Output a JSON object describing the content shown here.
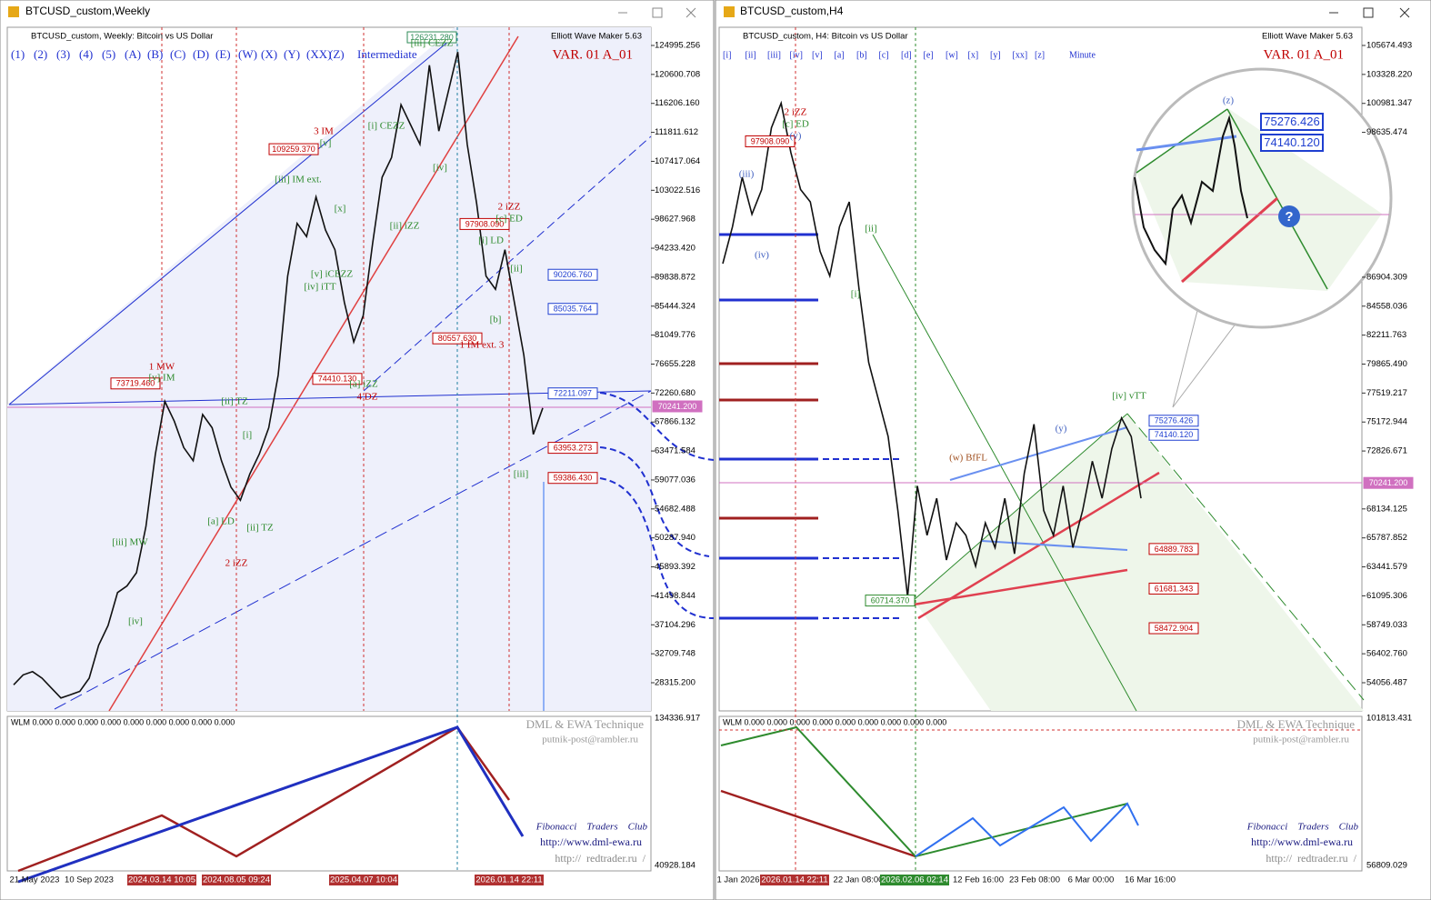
{
  "left": {
    "window_title": "BTCUSD_custom,Weekly",
    "header": "BTCUSD_custom, Weekly:  Bitcoin vs US Dollar",
    "ewm": "Elliott Wave Maker 5.63",
    "var": "VAR. 01 A_01",
    "buttons": [
      "(1)",
      "(2)",
      "(3)",
      "(4)",
      "(5)",
      "(A)",
      "(B)",
      "(C)",
      "(D)",
      "(E)",
      "(W)",
      "(X)",
      "(Y)",
      "(XX)",
      "(Z)"
    ],
    "degree": "Intermediate",
    "ylim": [
      24040,
      127753
    ],
    "yticks": [
      124995.256,
      120600.708,
      {
        "value": 116206.16,
        "label": "116206.160"
      },
      111811.612,
      107417.064,
      103022.516,
      98627.968,
      {
        "value": 94233.42,
        "label": "94233.420"
      },
      89838.872,
      85444.324,
      81049.776,
      76655.228,
      {
        "value": 72260.68,
        "label": "72260.680"
      },
      67866.132,
      63471.584,
      59077.036,
      54682.488,
      {
        "value": 50287.94,
        "label": "50287.940"
      },
      45893.392,
      41498.844,
      37104.296,
      32709.748,
      {
        "value": 28315.2,
        "label": "28315.200"
      }
    ],
    "price_labels": [
      {
        "value": 126231.28,
        "label": "126231.280",
        "color": "#2e8b57"
      },
      {
        "value": 109259.37,
        "label": "109259.370",
        "color": "#c00000"
      },
      {
        "value": 97908.09,
        "label": "97908.090",
        "color": "#c00000"
      },
      {
        "value": 90206.76,
        "label": "90206.760",
        "color": "#1f3fd0"
      },
      {
        "value": 85035.764,
        "label": "85035.764",
        "color": "#1f3fd0"
      },
      {
        "value": 80557.63,
        "label": "80557.630",
        "color": "#c00000"
      },
      {
        "value": 74410.13,
        "label": "74410.130",
        "color": "#c00000"
      },
      {
        "value": 73719.46,
        "label": "73719.460",
        "color": "#c00000"
      },
      {
        "value": 72211.097,
        "label": "72211.097",
        "color": "#1f3fd0"
      },
      {
        "value": 70241.2,
        "label": "70241.200",
        "color": "#d070c0"
      },
      {
        "value": 63953.273,
        "label": "63953.273",
        "color": "#c00000"
      },
      {
        "value": 59386.43,
        "label": "59386.430",
        "color": "#c00000"
      }
    ],
    "waves": [
      {
        "text": "1 MW",
        "color": "#c00000"
      },
      {
        "text": "[v] IM",
        "color": "#2e8b2e"
      },
      {
        "text": "3 IM",
        "color": "#c00000"
      },
      {
        "text": "[v]",
        "color": "#2e8b2e"
      },
      {
        "text": "[iii] IM ext.",
        "color": "#2e8b2e"
      },
      {
        "text": "[x]",
        "color": "#2e8b2e"
      },
      {
        "text": "[i] CEZZ",
        "color": "#2e8b2e"
      },
      {
        "text": "[iii] CEZZ",
        "color": "#2e8b2e"
      },
      {
        "text": "[iv]",
        "color": "#2e8b2e"
      },
      {
        "text": "[ii] iZZ",
        "color": "#2e8b2e"
      },
      {
        "text": "[v] iCEZZ",
        "color": "#2e8b2e"
      },
      {
        "text": "[iv] iTT",
        "color": "#2e8b2e"
      },
      {
        "text": "2 iZZ",
        "color": "#c00000"
      },
      {
        "text": "[c] ED",
        "color": "#2e8b2e"
      },
      {
        "text": "[i] LD",
        "color": "#2e8b2e"
      },
      {
        "text": "[ii]",
        "color": "#2e8b2e"
      },
      {
        "text": "[b]",
        "color": "#2e8b2e"
      },
      {
        "text": "1 IM ext. 3",
        "color": "#c00000"
      },
      {
        "text": "[a] iZZ",
        "color": "#2e8b2e"
      },
      {
        "text": "4 DZ",
        "color": "#c00000"
      },
      {
        "text": "[ii] TZ",
        "color": "#2e8b2e"
      },
      {
        "text": "[i]",
        "color": "#2e8b2e"
      },
      {
        "text": "[a] LD",
        "color": "#2e8b2e"
      },
      {
        "text": "[ii] TZ",
        "color": "#2e8b2e"
      },
      {
        "text": "[iii] MW",
        "color": "#2e8b2e"
      },
      {
        "text": "[iv]",
        "color": "#2e8b2e"
      },
      {
        "text": "2 iZZ",
        "color": "#c00000"
      },
      {
        "text": "[iii]",
        "color": "#2e8b2e"
      }
    ],
    "price": [
      28000,
      29500,
      30000,
      29000,
      27500,
      26000,
      26500,
      27000,
      29000,
      34000,
      37000,
      42000,
      43000,
      45000,
      52000,
      63000,
      71000,
      68000,
      64000,
      62000,
      69000,
      67000,
      62000,
      58000,
      56000,
      60000,
      63000,
      67000,
      75000,
      90000,
      98000,
      96000,
      102000,
      97000,
      94000,
      86000,
      80000,
      84000,
      95000,
      105000,
      108000,
      116000,
      113000,
      110000,
      122000,
      112000,
      118000,
      124000,
      110000,
      101000,
      90000,
      88000,
      94000,
      86000,
      78000,
      66000,
      70000
    ],
    "indicator": "WLM 0.000 0.000 0.000 0.000 0.000 0.000 0.000 0.000 0.000",
    "indicator_scale": [
      134336.917,
      40928.184
    ],
    "watermark": [
      "DML & EWA Technique",
      "putnik-post@rambler.ru",
      "Fibonacci    Traders    Club",
      "http://www.dml-ewa.ru",
      "http://  redtrader.ru  /"
    ],
    "time_labels": [
      "21 May 2023",
      "10 Sep 2023",
      "2024.03.14 10:05",
      "2024.08.05 09:24",
      "2025.04.07 10:04",
      "2026.01.14 22:11"
    ]
  },
  "right": {
    "window_title": "BTCUSD_custom,H4",
    "header": "BTCUSD_custom, H4:  Bitcoin vs US Dollar",
    "ewm": "Elliott Wave Maker 5.63",
    "var": "VAR. 01 A_01",
    "buttons": [
      "[i]",
      "[ii]",
      "[iii]",
      "[iv]",
      "[v]",
      "[a]",
      "[b]",
      "[c]",
      "[d]",
      "[e]",
      "[w]",
      "[x]",
      "[y]",
      "[xx]",
      "[z]"
    ],
    "degree": "Minute",
    "ylim": [
      51774,
      107147
    ],
    "yticks": [
      105674.493,
      {
        "value": 103328.22,
        "label": "103328.220"
      },
      100981.347,
      98635.474,
      86904.309,
      84558.036,
      82211.763,
      {
        "value": 79865.49,
        "label": "79865.490"
      },
      77519.217,
      75172.944,
      72826.671,
      68134.125,
      65787.852,
      63441.579,
      61095.306,
      58749.033,
      {
        "value": 56402.76,
        "label": "56402.760"
      },
      54056.487
    ],
    "price_labels": [
      {
        "value": 97908.09,
        "label": "97908.090",
        "color": "#c00000"
      },
      {
        "value": 75276.426,
        "label": "75276.426",
        "color": "#1f3fd0"
      },
      {
        "value": 74140.12,
        "label": "74140.120",
        "color": "#1f3fd0"
      },
      {
        "value": 70241.2,
        "label": "70241.200",
        "color": "#d070c0"
      },
      {
        "value": 64889.783,
        "label": "64889.783",
        "color": "#c00000"
      },
      {
        "value": 61681.343,
        "label": "61681.343",
        "color": "#c00000"
      },
      {
        "value": 58472.904,
        "label": "58472.904",
        "color": "#c00000"
      },
      {
        "value": 60714.37,
        "label": "60714.370",
        "color": "#2e8b2e"
      }
    ],
    "waves": [
      {
        "text": "2 iZZ",
        "color": "#c00000"
      },
      {
        "text": "[c] ED",
        "color": "#2e8b2e"
      },
      {
        "text": "(v)",
        "color": "#4060c0"
      },
      {
        "text": "(iii)",
        "color": "#4060c0"
      },
      {
        "text": "(iv)",
        "color": "#4060c0"
      },
      {
        "text": "[ii]",
        "color": "#2e8b2e"
      },
      {
        "text": "[i]",
        "color": "#2e8b2e"
      },
      {
        "text": "(w) BfFL",
        "color": "#a05020"
      },
      {
        "text": "[iv] vTT",
        "color": "#2e8b2e"
      },
      {
        "text": "(y)",
        "color": "#4060c0"
      },
      {
        "text": "(z)",
        "color": "#4060c0"
      }
    ],
    "bubble_labels": [
      {
        "value": 75276.426,
        "label": "75276.426"
      },
      {
        "value": 74140.12,
        "label": "74140.120"
      }
    ],
    "price": [
      88000,
      91000,
      95000,
      92000,
      94000,
      99000,
      101000,
      97000,
      94000,
      93000,
      89000,
      87000,
      91000,
      93000,
      86000,
      80000,
      77000,
      74000,
      68000,
      61000,
      70000,
      66000,
      69000,
      64000,
      67000,
      66000,
      63500,
      67000,
      65000,
      69000,
      64500,
      71000,
      75000,
      68000,
      66000,
      70000,
      65000,
      68000,
      72000,
      69000,
      73000,
      75500,
      74000,
      69000
    ],
    "indicator": "WLM 0.000 0.000 0.000 0.000 0.000 0.000 0.000 0.000 0.000",
    "indicator_scale": [
      101813.431,
      56809.029
    ],
    "watermark": [
      "DML & EWA Technique",
      "putnik-post@rambler.ru",
      "Fibonacci    Traders    Club",
      "http://www.dml-ewa.ru",
      "http://  redtrader.ru  /"
    ],
    "time_labels": [
      "1 Jan 2026",
      "2026.01.14 22:11",
      "22 Jan 08:00",
      "2026.02.06 02:14",
      "12 Feb 16:00",
      "23 Feb 08:00",
      "6 Mar 00:00",
      "16 Mar 16:00"
    ]
  }
}
